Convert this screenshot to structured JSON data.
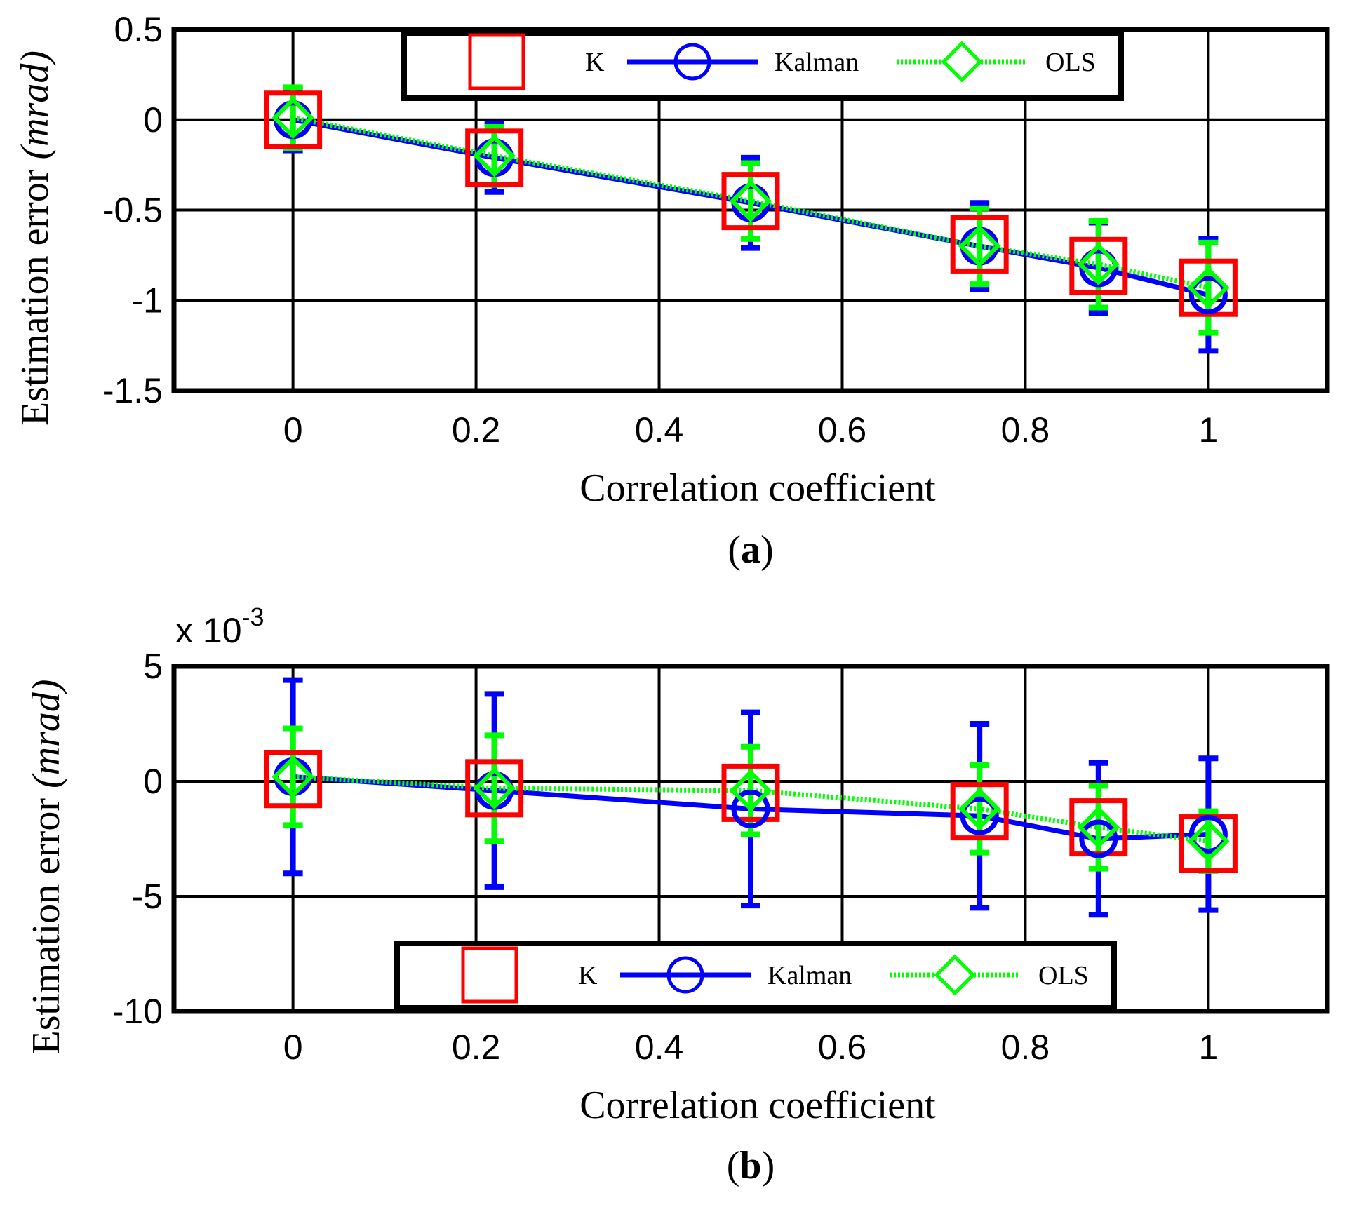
{
  "chart_data": [
    {
      "type": "line",
      "panel_label": {
        "open": "(",
        "letter": "a",
        "close": ")"
      },
      "xlabel": "Correlation coefficient",
      "ylabel": {
        "main": "Estimation error ",
        "unit": "(mrad)"
      },
      "exponent_label": "",
      "xlim": [
        -0.13,
        1.13
      ],
      "ylim": [
        -1.5,
        0.5
      ],
      "xticks": [
        0,
        0.2,
        0.4,
        0.6,
        0.8,
        1
      ],
      "xtick_labels": [
        "0",
        "0.2",
        "0.4",
        "0.6",
        "0.8",
        "1"
      ],
      "yticks": [
        0.5,
        0,
        -0.5,
        -1,
        -1.5
      ],
      "ytick_labels": [
        "0.5",
        "0",
        "-0.5",
        "-1",
        "-1.5"
      ],
      "grid": true,
      "legend": {
        "placement": "top",
        "entries": [
          "K",
          "Kalman",
          "OLS"
        ]
      },
      "x": [
        0,
        0.22,
        0.5,
        0.75,
        0.88,
        1.0
      ],
      "series": [
        {
          "name": "K",
          "style": "marker-only",
          "marker": "square",
          "color": "#ff0000",
          "values": [
            0.0,
            -0.21,
            -0.45,
            -0.69,
            -0.81,
            -0.93
          ],
          "errors": null
        },
        {
          "name": "Kalman",
          "style": "solid",
          "marker": "circle",
          "color": "#0000ff",
          "values": [
            0.0,
            -0.21,
            -0.46,
            -0.7,
            -0.82,
            -0.97
          ],
          "errors": [
            0.17,
            0.19,
            0.25,
            0.24,
            0.25,
            0.31
          ]
        },
        {
          "name": "OLS",
          "style": "dotted",
          "marker": "diamond",
          "color": "#00ff00",
          "values": [
            0.01,
            -0.2,
            -0.45,
            -0.7,
            -0.8,
            -0.93
          ],
          "errors": [
            0.17,
            0.16,
            0.21,
            0.21,
            0.24,
            0.25
          ]
        }
      ]
    },
    {
      "type": "line",
      "panel_label": {
        "open": "(",
        "letter": "b",
        "close": ")"
      },
      "xlabel": "Correlation coefficient",
      "ylabel": {
        "main": "Estimation error ",
        "unit": "(mrad)"
      },
      "exponent_label": {
        "base": "x 10",
        "exp": "-3"
      },
      "xlim": [
        -0.13,
        1.13
      ],
      "ylim": [
        -10,
        5
      ],
      "xticks": [
        0,
        0.2,
        0.4,
        0.6,
        0.8,
        1
      ],
      "xtick_labels": [
        "0",
        "0.2",
        "0.4",
        "0.6",
        "0.8",
        "1"
      ],
      "yticks": [
        5,
        0,
        -5,
        -10
      ],
      "ytick_labels": [
        "5",
        "0",
        "-5",
        "-10"
      ],
      "grid": true,
      "legend": {
        "placement": "bottom",
        "entries": [
          "K",
          "Kalman",
          "OLS"
        ]
      },
      "x": [
        0,
        0.22,
        0.5,
        0.75,
        0.88,
        1.0
      ],
      "series": [
        {
          "name": "K",
          "style": "marker-only",
          "marker": "square",
          "color": "#ff0000",
          "values": [
            0.1,
            -0.3,
            -0.5,
            -1.3,
            -2.0,
            -2.7
          ],
          "errors": null
        },
        {
          "name": "Kalman",
          "style": "solid",
          "marker": "circle",
          "color": "#0000ff",
          "values": [
            0.2,
            -0.4,
            -1.2,
            -1.5,
            -2.5,
            -2.3
          ],
          "errors": [
            4.2,
            4.2,
            4.2,
            4.0,
            3.3,
            3.3
          ]
        },
        {
          "name": "OLS",
          "style": "dotted",
          "marker": "diamond",
          "color": "#00ff00",
          "values": [
            0.2,
            -0.3,
            -0.4,
            -1.2,
            -2.0,
            -2.6
          ],
          "errors": [
            2.1,
            2.3,
            1.9,
            1.9,
            1.8,
            1.3
          ]
        }
      ]
    }
  ]
}
